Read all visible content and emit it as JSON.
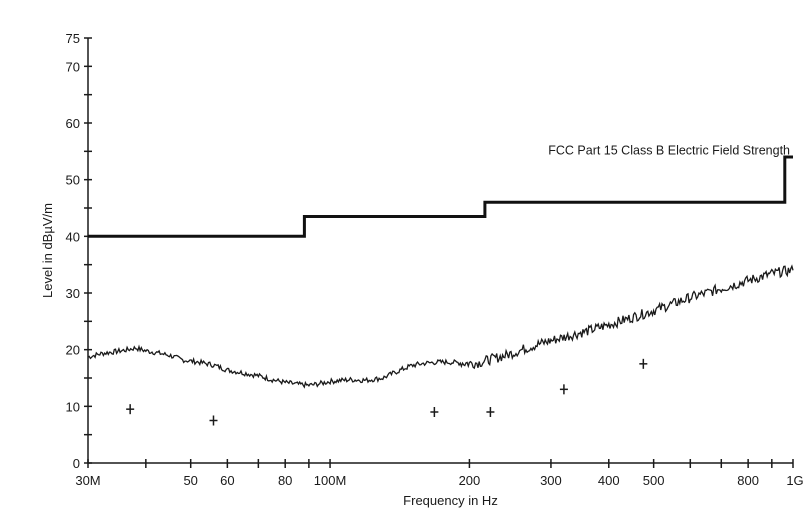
{
  "chart_data": {
    "type": "line",
    "title": "",
    "xlabel": "Frequency in Hz",
    "ylabel": "Level in dBµV/m",
    "x_scale": "log",
    "xlim": [
      30000000,
      1000000000
    ],
    "ylim": [
      0,
      75
    ],
    "grid": false,
    "x_ticks": [
      {
        "value": 30000000,
        "label": "30M"
      },
      {
        "value": 40000000,
        "label": ""
      },
      {
        "value": 50000000,
        "label": "50"
      },
      {
        "value": 60000000,
        "label": "60"
      },
      {
        "value": 70000000,
        "label": ""
      },
      {
        "value": 80000000,
        "label": "80"
      },
      {
        "value": 90000000,
        "label": ""
      },
      {
        "value": 100000000,
        "label": "100M"
      },
      {
        "value": 200000000,
        "label": "200"
      },
      {
        "value": 300000000,
        "label": "300"
      },
      {
        "value": 400000000,
        "label": "400"
      },
      {
        "value": 500000000,
        "label": "500"
      },
      {
        "value": 600000000,
        "label": ""
      },
      {
        "value": 700000000,
        "label": ""
      },
      {
        "value": 800000000,
        "label": "800"
      },
      {
        "value": 900000000,
        "label": ""
      },
      {
        "value": 1000000000,
        "label": "1G"
      }
    ],
    "y_ticks": [
      {
        "value": 0,
        "label": "0"
      },
      {
        "value": 5,
        "label": ""
      },
      {
        "value": 10,
        "label": "10"
      },
      {
        "value": 15,
        "label": ""
      },
      {
        "value": 20,
        "label": "20"
      },
      {
        "value": 25,
        "label": ""
      },
      {
        "value": 30,
        "label": "30"
      },
      {
        "value": 35,
        "label": ""
      },
      {
        "value": 40,
        "label": "40"
      },
      {
        "value": 45,
        "label": ""
      },
      {
        "value": 50,
        "label": "50"
      },
      {
        "value": 55,
        "label": ""
      },
      {
        "value": 60,
        "label": "60"
      },
      {
        "value": 65,
        "label": ""
      },
      {
        "value": 70,
        "label": "70"
      },
      {
        "value": 75,
        "label": "75"
      }
    ],
    "annotations": [
      {
        "text": "FCC Part 15 Class B Electric Field Strength",
        "x": 480000000,
        "y": 55
      }
    ],
    "series": [
      {
        "kind": "limit",
        "points": [
          [
            30000000,
            40
          ],
          [
            88000000,
            40
          ],
          [
            88000000,
            43.5
          ],
          [
            216000000,
            43.5
          ],
          [
            216000000,
            46
          ],
          [
            960000000,
            46
          ],
          [
            960000000,
            54
          ],
          [
            1000000000,
            54
          ]
        ]
      },
      {
        "kind": "trace",
        "points": [
          [
            30000000,
            18.7
          ],
          [
            32000000,
            19.3
          ],
          [
            34000000,
            19.6
          ],
          [
            36000000,
            19.9
          ],
          [
            38000000,
            20.3
          ],
          [
            40000000,
            19.8
          ],
          [
            42000000,
            19.5
          ],
          [
            45000000,
            19.0
          ],
          [
            48000000,
            18.2
          ],
          [
            52000000,
            17.8
          ],
          [
            56000000,
            17.3
          ],
          [
            60000000,
            16.4
          ],
          [
            65000000,
            15.9
          ],
          [
            70000000,
            15.4
          ],
          [
            75000000,
            14.7
          ],
          [
            80000000,
            14.2
          ],
          [
            85000000,
            13.9
          ],
          [
            90000000,
            13.7
          ],
          [
            95000000,
            14.0
          ],
          [
            100000000,
            14.4
          ],
          [
            110000000,
            14.7
          ],
          [
            120000000,
            14.6
          ],
          [
            130000000,
            15.0
          ],
          [
            140000000,
            16.2
          ],
          [
            150000000,
            17.2
          ],
          [
            160000000,
            17.6
          ],
          [
            170000000,
            17.8
          ],
          [
            180000000,
            17.8
          ],
          [
            190000000,
            17.7
          ],
          [
            200000000,
            17.6
          ],
          [
            210000000,
            17.7
          ],
          [
            220000000,
            18.2
          ],
          [
            240000000,
            19.0
          ],
          [
            260000000,
            20.0
          ],
          [
            280000000,
            20.9
          ],
          [
            300000000,
            21.6
          ],
          [
            330000000,
            22.5
          ],
          [
            360000000,
            23.3
          ],
          [
            400000000,
            24.4
          ],
          [
            450000000,
            25.7
          ],
          [
            500000000,
            26.9
          ],
          [
            550000000,
            28.1
          ],
          [
            600000000,
            29.2
          ],
          [
            650000000,
            30.0
          ],
          [
            700000000,
            30.8
          ],
          [
            750000000,
            31.5
          ],
          [
            800000000,
            32.2
          ],
          [
            850000000,
            32.8
          ],
          [
            900000000,
            33.4
          ],
          [
            950000000,
            33.8
          ],
          [
            1000000000,
            34.0
          ]
        ]
      },
      {
        "kind": "markers",
        "points": [
          [
            37000000,
            9.5
          ],
          [
            56000000,
            7.5
          ],
          [
            168000000,
            9.0
          ],
          [
            222000000,
            9.0
          ],
          [
            320000000,
            13.0
          ],
          [
            475000000,
            17.5
          ]
        ]
      }
    ]
  }
}
